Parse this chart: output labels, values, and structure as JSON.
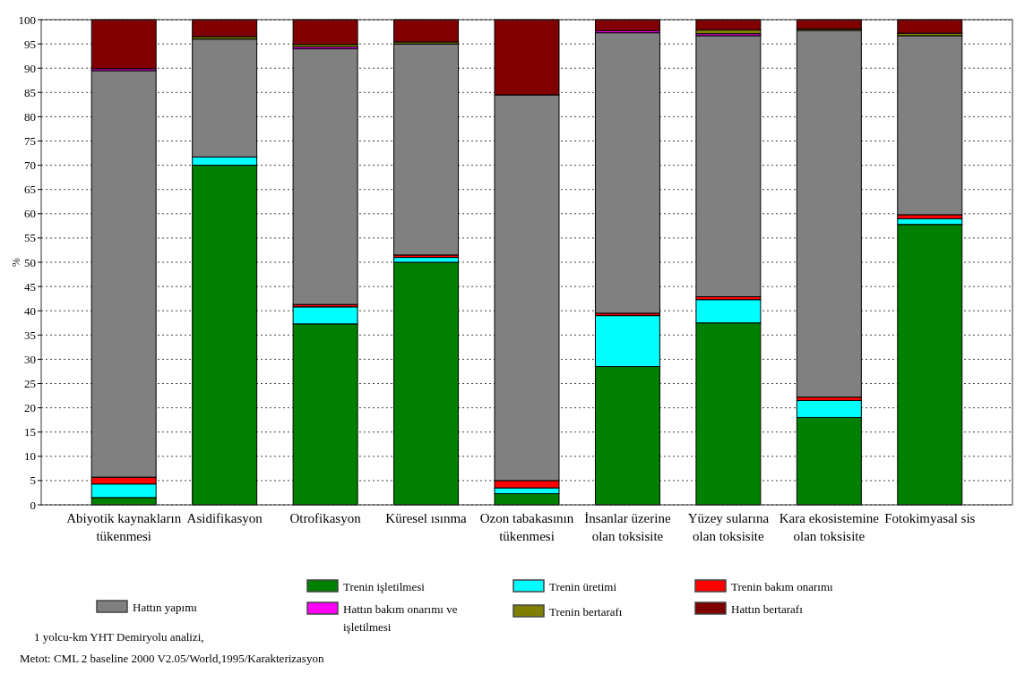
{
  "chart_data": {
    "type": "bar",
    "stacked": true,
    "ylabel": "%",
    "categories": [
      "Abiyotik kaynakların tükenmesi",
      "Asidifikasyon",
      "Otrofikasyon",
      "Küresel ısınma",
      "Ozon tabakasının tükenmesi",
      "İnsanlar üzerine olan toksisite",
      "Yüzey sularına olan toksisite",
      "Kara ekosistemine olan toksisite",
      "Fotokimyasal sis"
    ],
    "series": [
      {
        "name": "Trenin işletilmesi",
        "color": "#008000",
        "values": [
          1.5,
          70,
          37.3,
          50,
          2.3,
          28.5,
          37.5,
          18,
          57.8
        ]
      },
      {
        "name": "Trenin üretimi",
        "color": "#00ffff",
        "values": [
          2.8,
          1.7,
          3.5,
          1,
          1.2,
          10.5,
          4.8,
          3.5,
          1.2
        ]
      },
      {
        "name": "Trenin bakım onarımı",
        "color": "#ff0000",
        "values": [
          1.4,
          null,
          0.5,
          0.5,
          1.5,
          0.5,
          0.6,
          0.7,
          0.8
        ]
      },
      {
        "name": "Hattın yapımı",
        "color": "#808080",
        "values": [
          83.8,
          24.3,
          52.7,
          43.5,
          79.5,
          57.8,
          53.8,
          75.6,
          36.9
        ]
      },
      {
        "name": "Hattın bakım onarımı ve işletilmesi",
        "color": "#ff00ff",
        "values": [
          0.4,
          0,
          0.4,
          0,
          0,
          0.4,
          0.4,
          0,
          0
        ]
      },
      {
        "name": "Trenin bertarafı",
        "color": "#808000",
        "values": [
          null,
          0.5,
          0.5,
          0.4,
          null,
          0,
          0.8,
          0.3,
          0.5
        ]
      },
      {
        "name": "Hattın bertarafı",
        "color": "#800000",
        "values": [
          10.1,
          3.5,
          5.1,
          4.6,
          15.5,
          2.3,
          2.1,
          1.9,
          2.8
        ]
      }
    ],
    "ylim": [
      0,
      100
    ],
    "yticks": [
      0,
      5,
      10,
      15,
      20,
      25,
      30,
      35,
      40,
      45,
      50,
      55,
      60,
      65,
      70,
      75,
      80,
      85,
      90,
      95,
      100
    ],
    "grid": "y",
    "legend": "bottom",
    "annotations": [
      "1 yolcu-km YHT Demiryolu analizi,",
      "Metot: CML 2 baseline 2000 V2.05/World,1995/Karakterizasyon"
    ]
  }
}
